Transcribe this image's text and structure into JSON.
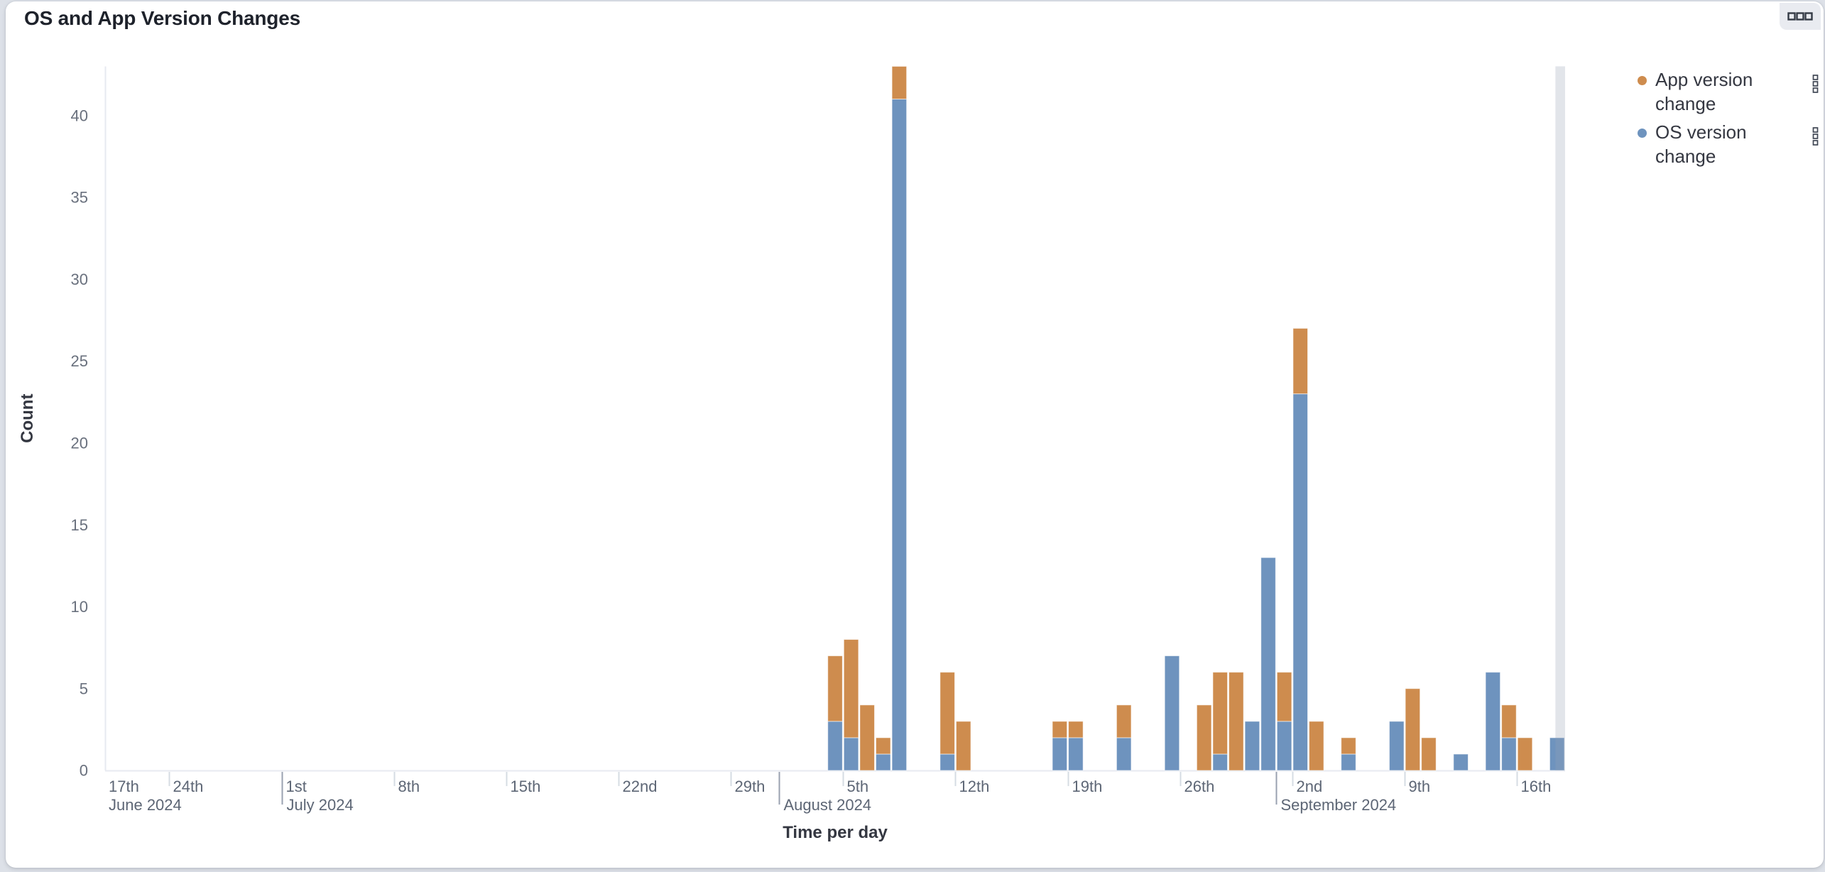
{
  "panel": {
    "title": "OS and App Version Changes",
    "options_icon": "boxes-horizontal-icon"
  },
  "legend": {
    "position": "right",
    "items": [
      {
        "label": "App version change",
        "color": "#ce8c4e",
        "actions_icon": "boxes-vertical-icon"
      },
      {
        "label": "OS version change",
        "color": "#6e93be",
        "actions_icon": "boxes-vertical-icon"
      }
    ]
  },
  "chart_data": {
    "type": "bar",
    "stacked": true,
    "title": "OS and App Version Changes",
    "xlabel": "Time per day",
    "ylabel": "Count",
    "grid": false,
    "legend_position": "right",
    "x_domain": [
      "2024-06-20",
      "2024-09-19"
    ],
    "ylim": [
      0,
      43
    ],
    "y_ticks": [
      0,
      5,
      10,
      15,
      20,
      25,
      30,
      35,
      40
    ],
    "x_day_ticks": [
      {
        "date": "2024-06-17",
        "label": "17th",
        "clamped_to_edge": true
      },
      {
        "date": "2024-06-24",
        "label": "24th"
      },
      {
        "date": "2024-07-01",
        "label": "1st"
      },
      {
        "date": "2024-07-08",
        "label": "8th"
      },
      {
        "date": "2024-07-15",
        "label": "15th"
      },
      {
        "date": "2024-07-22",
        "label": "22nd"
      },
      {
        "date": "2024-07-29",
        "label": "29th"
      },
      {
        "date": "2024-08-05",
        "label": "5th"
      },
      {
        "date": "2024-08-12",
        "label": "12th"
      },
      {
        "date": "2024-08-19",
        "label": "19th"
      },
      {
        "date": "2024-08-26",
        "label": "26th"
      },
      {
        "date": "2024-09-02",
        "label": "2nd"
      },
      {
        "date": "2024-09-09",
        "label": "9th"
      },
      {
        "date": "2024-09-16",
        "label": "16th"
      }
    ],
    "x_month_labels": [
      {
        "date": "2024-06-20",
        "label": "June 2024",
        "at_edge": true
      },
      {
        "date": "2024-07-01",
        "label": "July 2024"
      },
      {
        "date": "2024-08-01",
        "label": "August 2024"
      },
      {
        "date": "2024-09-01",
        "label": "September 2024"
      }
    ],
    "dates": [
      "2024-08-04",
      "2024-08-05",
      "2024-08-06",
      "2024-08-07",
      "2024-08-08",
      "2024-08-11",
      "2024-08-12",
      "2024-08-18",
      "2024-08-19",
      "2024-08-22",
      "2024-08-25",
      "2024-08-27",
      "2024-08-28",
      "2024-08-29",
      "2024-08-30",
      "2024-08-31",
      "2024-09-01",
      "2024-09-02",
      "2024-09-03",
      "2024-09-05",
      "2024-09-08",
      "2024-09-09",
      "2024-09-10",
      "2024-09-12",
      "2024-09-14",
      "2024-09-15",
      "2024-09-16",
      "2024-09-18"
    ],
    "series_bottom_to_top": [
      {
        "name": "OS version change",
        "color": "#6e93be",
        "values": [
          3,
          2,
          0,
          1,
          41,
          1,
          0,
          2,
          2,
          2,
          7,
          0,
          1,
          0,
          3,
          13,
          3,
          23,
          0,
          1,
          3,
          0,
          0,
          1,
          6,
          2,
          0,
          2
        ]
      },
      {
        "name": "App version change",
        "color": "#ce8c4e",
        "values": [
          4,
          6,
          4,
          1,
          2,
          5,
          3,
          1,
          1,
          2,
          0,
          4,
          5,
          6,
          0,
          0,
          3,
          4,
          3,
          1,
          0,
          5,
          2,
          0,
          0,
          2,
          2,
          0
        ]
      }
    ],
    "partial_bucket_band": {
      "from": "2024-09-18T09:30:00",
      "to": "2024-09-19T00:00:00",
      "color": "#98a2b3"
    }
  }
}
